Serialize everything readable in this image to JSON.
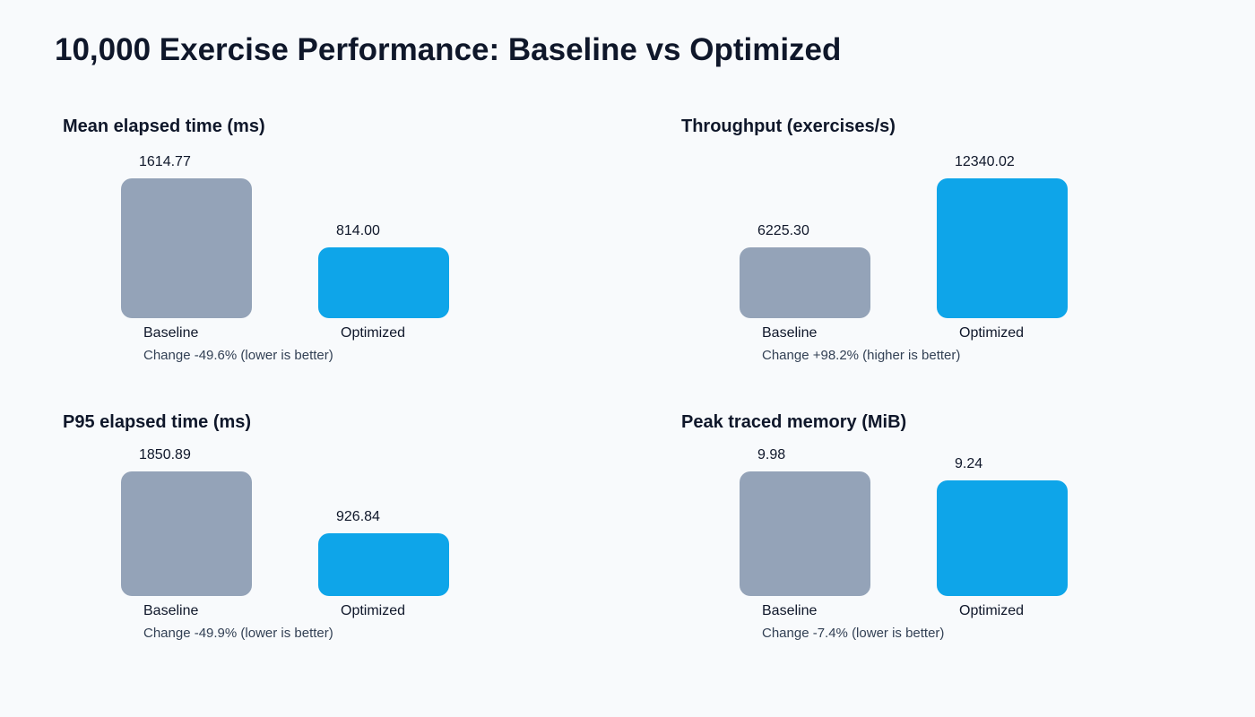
{
  "title": "10,000 Exercise Performance: Baseline vs Optimized",
  "colors": {
    "baseline": "#94a3b8",
    "optimized": "#0ea5e9",
    "background": "#f8fafc",
    "text": "#0f172a",
    "subtext": "#334155"
  },
  "chart_data": [
    {
      "type": "bar",
      "title": "Mean elapsed time (ms)",
      "categories": [
        "Baseline",
        "Optimized"
      ],
      "values": [
        1614.77,
        814.0
      ],
      "value_labels": [
        "1614.77",
        "814.00"
      ],
      "note": "Change -49.6% (lower is better)"
    },
    {
      "type": "bar",
      "title": "Throughput (exercises/s)",
      "categories": [
        "Baseline",
        "Optimized"
      ],
      "values": [
        6225.3,
        12340.02
      ],
      "value_labels": [
        "6225.30",
        "12340.02"
      ],
      "note": "Change +98.2% (higher is better)"
    },
    {
      "type": "bar",
      "title": "P95 elapsed time (ms)",
      "categories": [
        "Baseline",
        "Optimized"
      ],
      "values": [
        1850.89,
        926.84
      ],
      "value_labels": [
        "1850.89",
        "926.84"
      ],
      "note": "Change -49.9% (lower is better)"
    },
    {
      "type": "bar",
      "title": "Peak traced memory (MiB)",
      "categories": [
        "Baseline",
        "Optimized"
      ],
      "values": [
        9.98,
        9.24
      ],
      "value_labels": [
        "9.98",
        "9.24"
      ],
      "note": "Change -7.4% (lower is better)"
    }
  ]
}
